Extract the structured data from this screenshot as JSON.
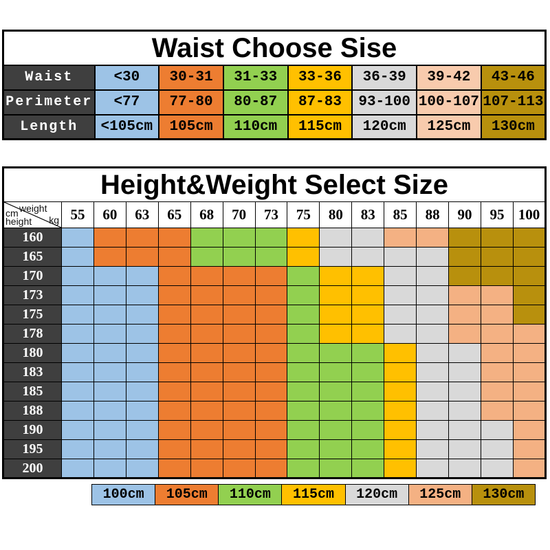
{
  "colors": {
    "blue": "#9DC3E6",
    "orange": "#ED7D31",
    "green": "#92D050",
    "yellow": "#FFC000",
    "gray": "#D9D9D9",
    "peach": "#F4B183",
    "peach_light": "#F8CBAD",
    "dark_gold": "#B8900D",
    "header_dark": "#3F3F3F",
    "header_text": "#FFFFFF",
    "border": "#000000"
  },
  "chart_data": [
    {
      "type": "table",
      "title": "Waist Choose Sise",
      "row_headers": [
        "Waist",
        "Perimeter",
        "Length"
      ],
      "rows": [
        [
          "<30",
          "30-31",
          "31-33",
          "33-36",
          "36-39",
          "39-42",
          "43-46"
        ],
        [
          "<77",
          "77-80",
          "80-87",
          "87-83",
          "93-100",
          "100-107",
          "107-113"
        ],
        [
          "<105cm",
          "105cm",
          "110cm",
          "115cm",
          "120cm",
          "125cm",
          "130cm"
        ]
      ],
      "column_colors": [
        "blue",
        "orange",
        "green",
        "yellow",
        "gray",
        "peach_light",
        "dark_gold"
      ]
    },
    {
      "type": "heatmap",
      "title": "Height&Weight Select Size",
      "xlabel": "weight kg",
      "ylabel": "height cm",
      "corner": {
        "weight_label": "weight",
        "weight_unit": "kg",
        "height_unit": "cm",
        "height_label": "height"
      },
      "x": [
        "55",
        "60",
        "63",
        "65",
        "68",
        "70",
        "73",
        "75",
        "80",
        "83",
        "85",
        "88",
        "90",
        "95",
        "100"
      ],
      "y": [
        "160",
        "165",
        "170",
        "173",
        "175",
        "178",
        "180",
        "183",
        "185",
        "188",
        "190",
        "195",
        "200"
      ],
      "values": [
        [
          "100cm",
          "105cm",
          "105cm",
          "105cm",
          "110cm",
          "110cm",
          "110cm",
          "115cm",
          "120cm",
          "120cm",
          "125cm",
          "125cm",
          "130cm",
          "130cm",
          "130cm"
        ],
        [
          "100cm",
          "105cm",
          "105cm",
          "105cm",
          "110cm",
          "110cm",
          "110cm",
          "115cm",
          "120cm",
          "120cm",
          "120cm",
          "120cm",
          "130cm",
          "130cm",
          "130cm"
        ],
        [
          "100cm",
          "100cm",
          "100cm",
          "105cm",
          "105cm",
          "105cm",
          "105cm",
          "110cm",
          "115cm",
          "115cm",
          "120cm",
          "120cm",
          "130cm",
          "130cm",
          "130cm"
        ],
        [
          "100cm",
          "100cm",
          "100cm",
          "105cm",
          "105cm",
          "105cm",
          "105cm",
          "110cm",
          "115cm",
          "115cm",
          "120cm",
          "120cm",
          "125cm",
          "125cm",
          "130cm"
        ],
        [
          "100cm",
          "100cm",
          "100cm",
          "105cm",
          "105cm",
          "105cm",
          "105cm",
          "110cm",
          "115cm",
          "115cm",
          "120cm",
          "120cm",
          "125cm",
          "125cm",
          "130cm"
        ],
        [
          "100cm",
          "100cm",
          "100cm",
          "105cm",
          "105cm",
          "105cm",
          "105cm",
          "110cm",
          "115cm",
          "115cm",
          "120cm",
          "120cm",
          "125cm",
          "125cm",
          "125cm"
        ],
        [
          "100cm",
          "100cm",
          "100cm",
          "105cm",
          "105cm",
          "105cm",
          "105cm",
          "110cm",
          "110cm",
          "110cm",
          "115cm",
          "120cm",
          "120cm",
          "125cm",
          "125cm"
        ],
        [
          "100cm",
          "100cm",
          "100cm",
          "105cm",
          "105cm",
          "105cm",
          "105cm",
          "110cm",
          "110cm",
          "110cm",
          "115cm",
          "120cm",
          "120cm",
          "125cm",
          "125cm"
        ],
        [
          "100cm",
          "100cm",
          "100cm",
          "105cm",
          "105cm",
          "105cm",
          "105cm",
          "110cm",
          "110cm",
          "110cm",
          "115cm",
          "120cm",
          "120cm",
          "125cm",
          "125cm"
        ],
        [
          "100cm",
          "100cm",
          "100cm",
          "105cm",
          "105cm",
          "105cm",
          "105cm",
          "110cm",
          "110cm",
          "110cm",
          "115cm",
          "120cm",
          "120cm",
          "125cm",
          "125cm"
        ],
        [
          "100cm",
          "100cm",
          "100cm",
          "105cm",
          "105cm",
          "105cm",
          "105cm",
          "110cm",
          "110cm",
          "110cm",
          "115cm",
          "120cm",
          "120cm",
          "120cm",
          "125cm"
        ],
        [
          "100cm",
          "100cm",
          "100cm",
          "105cm",
          "105cm",
          "105cm",
          "105cm",
          "110cm",
          "110cm",
          "110cm",
          "115cm",
          "120cm",
          "120cm",
          "120cm",
          "125cm"
        ],
        [
          "100cm",
          "100cm",
          "100cm",
          "105cm",
          "105cm",
          "105cm",
          "105cm",
          "110cm",
          "110cm",
          "110cm",
          "115cm",
          "120cm",
          "120cm",
          "120cm",
          "125cm"
        ]
      ],
      "legend_position": "bottom",
      "legend": [
        {
          "label": "100cm",
          "color": "blue"
        },
        {
          "label": "105cm",
          "color": "orange"
        },
        {
          "label": "110cm",
          "color": "green"
        },
        {
          "label": "115cm",
          "color": "yellow"
        },
        {
          "label": "120cm",
          "color": "gray"
        },
        {
          "label": "125cm",
          "color": "peach"
        },
        {
          "label": "130cm",
          "color": "dark_gold"
        }
      ]
    }
  ]
}
